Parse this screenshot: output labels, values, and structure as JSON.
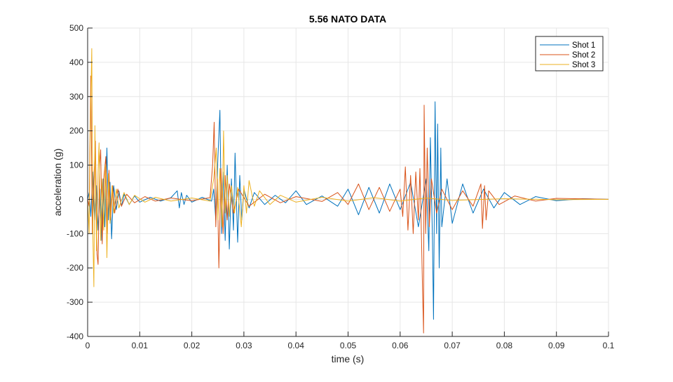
{
  "chart_data": {
    "type": "line",
    "title": "5.56 NATO DATA",
    "xlabel": "time (s)",
    "ylabel": "acceleration (g)",
    "xlim": [
      0,
      0.1
    ],
    "ylim": [
      -400,
      500
    ],
    "xticks": [
      "0",
      "0.01",
      "0.02",
      "0.03",
      "0.04",
      "0.05",
      "0.06",
      "0.07",
      "0.08",
      "0.09",
      "0.1"
    ],
    "yticks": [
      "-400",
      "-300",
      "-200",
      "-100",
      "0",
      "100",
      "200",
      "300",
      "400",
      "500"
    ],
    "grid": true,
    "legend_position": "top-right",
    "series": [
      {
        "name": "Shot 1",
        "color": "#0072BD",
        "points": [
          [
            0,
            0
          ],
          [
            0.0003,
            20
          ],
          [
            0.0006,
            -50
          ],
          [
            0.001,
            80
          ],
          [
            0.0013,
            -60
          ],
          [
            0.0017,
            40
          ],
          [
            0.002,
            -90
          ],
          [
            0.0024,
            30
          ],
          [
            0.0027,
            -120
          ],
          [
            0.003,
            60
          ],
          [
            0.0033,
            -80
          ],
          [
            0.0037,
            150
          ],
          [
            0.004,
            -60
          ],
          [
            0.0043,
            50
          ],
          [
            0.0046,
            -115
          ],
          [
            0.005,
            40
          ],
          [
            0.0055,
            -30
          ],
          [
            0.006,
            25
          ],
          [
            0.0065,
            -20
          ],
          [
            0.007,
            15
          ],
          [
            0.008,
            -15
          ],
          [
            0.009,
            10
          ],
          [
            0.01,
            -8
          ],
          [
            0.012,
            6
          ],
          [
            0.014,
            -5
          ],
          [
            0.016,
            5
          ],
          [
            0.0172,
            25
          ],
          [
            0.0176,
            -25
          ],
          [
            0.018,
            20
          ],
          [
            0.0185,
            -15
          ],
          [
            0.019,
            12
          ],
          [
            0.02,
            -8
          ],
          [
            0.022,
            6
          ],
          [
            0.0238,
            -5
          ],
          [
            0.0242,
            30
          ],
          [
            0.0246,
            -60
          ],
          [
            0.025,
            120
          ],
          [
            0.0254,
            260
          ],
          [
            0.0257,
            -100
          ],
          [
            0.026,
            80
          ],
          [
            0.0264,
            -120
          ],
          [
            0.0268,
            100
          ],
          [
            0.0272,
            -145
          ],
          [
            0.0276,
            60
          ],
          [
            0.028,
            -90
          ],
          [
            0.0283,
            135
          ],
          [
            0.0288,
            -125
          ],
          [
            0.0292,
            70
          ],
          [
            0.0296,
            -60
          ],
          [
            0.03,
            30
          ],
          [
            0.031,
            -25
          ],
          [
            0.032,
            20
          ],
          [
            0.034,
            -15
          ],
          [
            0.036,
            12
          ],
          [
            0.038,
            -10
          ],
          [
            0.04,
            25
          ],
          [
            0.042,
            -15
          ],
          [
            0.045,
            10
          ],
          [
            0.048,
            -20
          ],
          [
            0.05,
            30
          ],
          [
            0.052,
            -45
          ],
          [
            0.054,
            35
          ],
          [
            0.056,
            -40
          ],
          [
            0.058,
            45
          ],
          [
            0.06,
            -30
          ],
          [
            0.062,
            50
          ],
          [
            0.0635,
            -80
          ],
          [
            0.065,
            60
          ],
          [
            0.0655,
            -150
          ],
          [
            0.0658,
            180
          ],
          [
            0.0662,
            -120
          ],
          [
            0.0664,
            -350
          ],
          [
            0.0667,
            285
          ],
          [
            0.067,
            -100
          ],
          [
            0.0672,
            220
          ],
          [
            0.0675,
            -200
          ],
          [
            0.0678,
            150
          ],
          [
            0.068,
            -80
          ],
          [
            0.069,
            60
          ],
          [
            0.07,
            -70
          ],
          [
            0.072,
            45
          ],
          [
            0.074,
            -40
          ],
          [
            0.076,
            30
          ],
          [
            0.078,
            -25
          ],
          [
            0.08,
            20
          ],
          [
            0.083,
            -15
          ],
          [
            0.086,
            8
          ],
          [
            0.09,
            -4
          ],
          [
            0.095,
            2
          ],
          [
            0.1,
            0
          ]
        ]
      },
      {
        "name": "Shot 2",
        "color": "#D95319",
        "points": [
          [
            0,
            0
          ],
          [
            0.0003,
            -20
          ],
          [
            0.0006,
            360
          ],
          [
            0.0009,
            -100
          ],
          [
            0.0012,
            60
          ],
          [
            0.0015,
            170
          ],
          [
            0.0018,
            -160
          ],
          [
            0.002,
            -190
          ],
          [
            0.0023,
            100
          ],
          [
            0.0025,
            145
          ],
          [
            0.0028,
            -130
          ],
          [
            0.0031,
            60
          ],
          [
            0.0035,
            125
          ],
          [
            0.0038,
            -100
          ],
          [
            0.0041,
            85
          ],
          [
            0.0044,
            -60
          ],
          [
            0.0048,
            40
          ],
          [
            0.0052,
            -40
          ],
          [
            0.0058,
            30
          ],
          [
            0.0065,
            -20
          ],
          [
            0.0075,
            15
          ],
          [
            0.009,
            -10
          ],
          [
            0.011,
            8
          ],
          [
            0.013,
            -5
          ],
          [
            0.016,
            4
          ],
          [
            0.02,
            -4
          ],
          [
            0.0235,
            5
          ],
          [
            0.024,
            100
          ],
          [
            0.0243,
            225
          ],
          [
            0.0246,
            -80
          ],
          [
            0.0249,
            60
          ],
          [
            0.0252,
            -200
          ],
          [
            0.0256,
            90
          ],
          [
            0.026,
            -100
          ],
          [
            0.0264,
            70
          ],
          [
            0.0268,
            -60
          ],
          [
            0.0272,
            45
          ],
          [
            0.028,
            -40
          ],
          [
            0.029,
            30
          ],
          [
            0.031,
            -20
          ],
          [
            0.034,
            15
          ],
          [
            0.037,
            -10
          ],
          [
            0.04,
            8
          ],
          [
            0.045,
            -6
          ],
          [
            0.048,
            20
          ],
          [
            0.05,
            -15
          ],
          [
            0.052,
            45
          ],
          [
            0.054,
            -30
          ],
          [
            0.056,
            35
          ],
          [
            0.058,
            -35
          ],
          [
            0.06,
            30
          ],
          [
            0.0605,
            -50
          ],
          [
            0.061,
            95
          ],
          [
            0.0615,
            -90
          ],
          [
            0.062,
            70
          ],
          [
            0.0625,
            -100
          ],
          [
            0.063,
            80
          ],
          [
            0.0635,
            -60
          ],
          [
            0.0638,
            90
          ],
          [
            0.0641,
            -120
          ],
          [
            0.0643,
            -260
          ],
          [
            0.0645,
            -390
          ],
          [
            0.0646,
            275
          ],
          [
            0.0649,
            -100
          ],
          [
            0.0652,
            150
          ],
          [
            0.0656,
            -80
          ],
          [
            0.066,
            60
          ],
          [
            0.067,
            -40
          ],
          [
            0.068,
            30
          ],
          [
            0.07,
            -30
          ],
          [
            0.072,
            25
          ],
          [
            0.074,
            -20
          ],
          [
            0.0755,
            45
          ],
          [
            0.0758,
            -85
          ],
          [
            0.0762,
            40
          ],
          [
            0.0765,
            -60
          ],
          [
            0.077,
            25
          ],
          [
            0.079,
            -15
          ],
          [
            0.082,
            10
          ],
          [
            0.086,
            -5
          ],
          [
            0.09,
            3
          ],
          [
            0.1,
            0
          ]
        ]
      },
      {
        "name": "Shot 3",
        "color": "#EDB120",
        "points": [
          [
            0,
            0
          ],
          [
            0.0003,
            -100
          ],
          [
            0.0005,
            200
          ],
          [
            0.0008,
            440
          ],
          [
            0.001,
            -100
          ],
          [
            0.0012,
            -255
          ],
          [
            0.0014,
            215
          ],
          [
            0.0017,
            -150
          ],
          [
            0.002,
            80
          ],
          [
            0.0022,
            165
          ],
          [
            0.0025,
            -120
          ],
          [
            0.0028,
            60
          ],
          [
            0.0031,
            -90
          ],
          [
            0.0034,
            100
          ],
          [
            0.0037,
            -170
          ],
          [
            0.004,
            75
          ],
          [
            0.0043,
            -70
          ],
          [
            0.0047,
            40
          ],
          [
            0.005,
            -40
          ],
          [
            0.0055,
            30
          ],
          [
            0.006,
            -25
          ],
          [
            0.007,
            20
          ],
          [
            0.008,
            -15
          ],
          [
            0.009,
            12
          ],
          [
            0.011,
            -8
          ],
          [
            0.013,
            6
          ],
          [
            0.016,
            -5
          ],
          [
            0.02,
            4
          ],
          [
            0.0235,
            -5
          ],
          [
            0.0242,
            60
          ],
          [
            0.0247,
            150
          ],
          [
            0.025,
            -60
          ],
          [
            0.0254,
            90
          ],
          [
            0.0258,
            -80
          ],
          [
            0.0261,
            200
          ],
          [
            0.0264,
            -40
          ],
          [
            0.0268,
            70
          ],
          [
            0.0272,
            -50
          ],
          [
            0.0276,
            40
          ],
          [
            0.0282,
            -40
          ],
          [
            0.0288,
            35
          ],
          [
            0.0295,
            -80
          ],
          [
            0.03,
            40
          ],
          [
            0.0305,
            -40
          ],
          [
            0.031,
            55
          ],
          [
            0.032,
            -20
          ],
          [
            0.033,
            25
          ],
          [
            0.035,
            -15
          ],
          [
            0.037,
            12
          ],
          [
            0.04,
            -8
          ],
          [
            0.045,
            6
          ],
          [
            0.05,
            -5
          ],
          [
            0.055,
            5
          ],
          [
            0.06,
            -5
          ],
          [
            0.065,
            4
          ],
          [
            0.07,
            -3
          ],
          [
            0.08,
            2
          ],
          [
            0.09,
            -1
          ],
          [
            0.1,
            0
          ]
        ]
      }
    ]
  }
}
